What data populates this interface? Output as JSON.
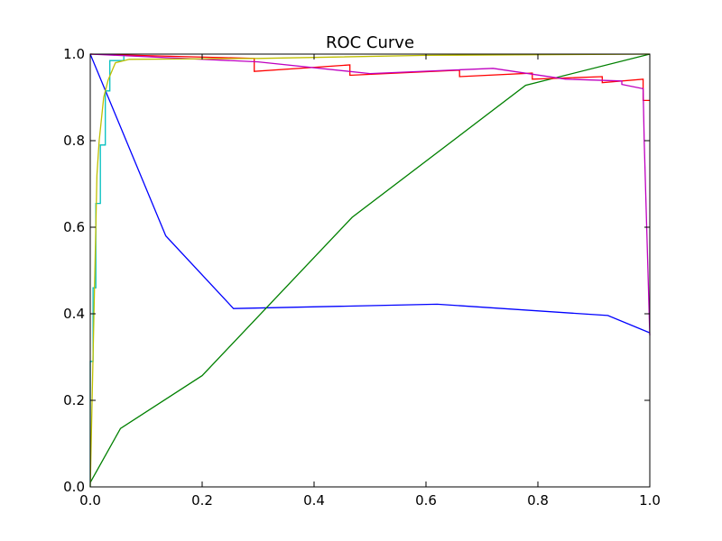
{
  "chart_data": {
    "type": "line",
    "title": "ROC Curve",
    "xlabel": "",
    "ylabel": "",
    "xlim": [
      0,
      1
    ],
    "ylim": [
      0,
      1
    ],
    "grid": false,
    "legend": "none",
    "xticks": [
      "0.0",
      "0.2",
      "0.4",
      "0.6",
      "0.8",
      "1.0"
    ],
    "yticks": [
      "0.0",
      "0.2",
      "0.4",
      "0.6",
      "0.8",
      "1.0"
    ],
    "series": [
      {
        "color": "#0000ff",
        "x": [
          0.0,
          0.135,
          0.256,
          0.62,
          0.925,
          1.0
        ],
        "y": [
          1.0,
          0.58,
          0.412,
          0.422,
          0.396,
          0.356
        ]
      },
      {
        "color": "#008000",
        "x": [
          0.0,
          0.054,
          0.2,
          0.468,
          0.778,
          1.0
        ],
        "y": [
          0.01,
          0.135,
          0.257,
          0.623,
          0.928,
          1.0
        ]
      },
      {
        "color": "#ff0000",
        "x": [
          0.0,
          0.293,
          0.293,
          0.464,
          0.464,
          0.66,
          0.66,
          0.79,
          0.79,
          0.915,
          0.915,
          0.988,
          0.988,
          1.0
        ],
        "y": [
          1.0,
          0.99,
          0.96,
          0.975,
          0.951,
          0.963,
          0.948,
          0.956,
          0.942,
          0.948,
          0.934,
          0.942,
          0.893,
          0.893
        ]
      },
      {
        "color": "#bf00bf",
        "x": [
          0.0,
          0.3,
          0.5,
          0.72,
          0.85,
          0.95,
          0.95,
          0.988,
          0.99,
          1.0
        ],
        "y": [
          1.0,
          0.982,
          0.955,
          0.967,
          0.942,
          0.938,
          0.93,
          0.92,
          0.8,
          0.35
        ]
      },
      {
        "color": "#00bfbf",
        "x": [
          0.0,
          0.0,
          0.005,
          0.005,
          0.01,
          0.01,
          0.018,
          0.018,
          0.027,
          0.027,
          0.035,
          0.035,
          0.06,
          0.06
        ],
        "y": [
          0.0,
          0.29,
          0.29,
          0.46,
          0.46,
          0.655,
          0.655,
          0.79,
          0.79,
          0.915,
          0.915,
          0.985,
          0.985,
          0.995
        ]
      },
      {
        "color": "#bfbf00",
        "x": [
          0.0,
          0.012,
          0.016,
          0.024,
          0.032,
          0.045,
          0.07,
          0.3,
          0.6,
          1.0
        ],
        "y": [
          0.0,
          0.72,
          0.8,
          0.9,
          0.94,
          0.98,
          0.988,
          0.99,
          0.997,
          1.0
        ]
      }
    ]
  }
}
